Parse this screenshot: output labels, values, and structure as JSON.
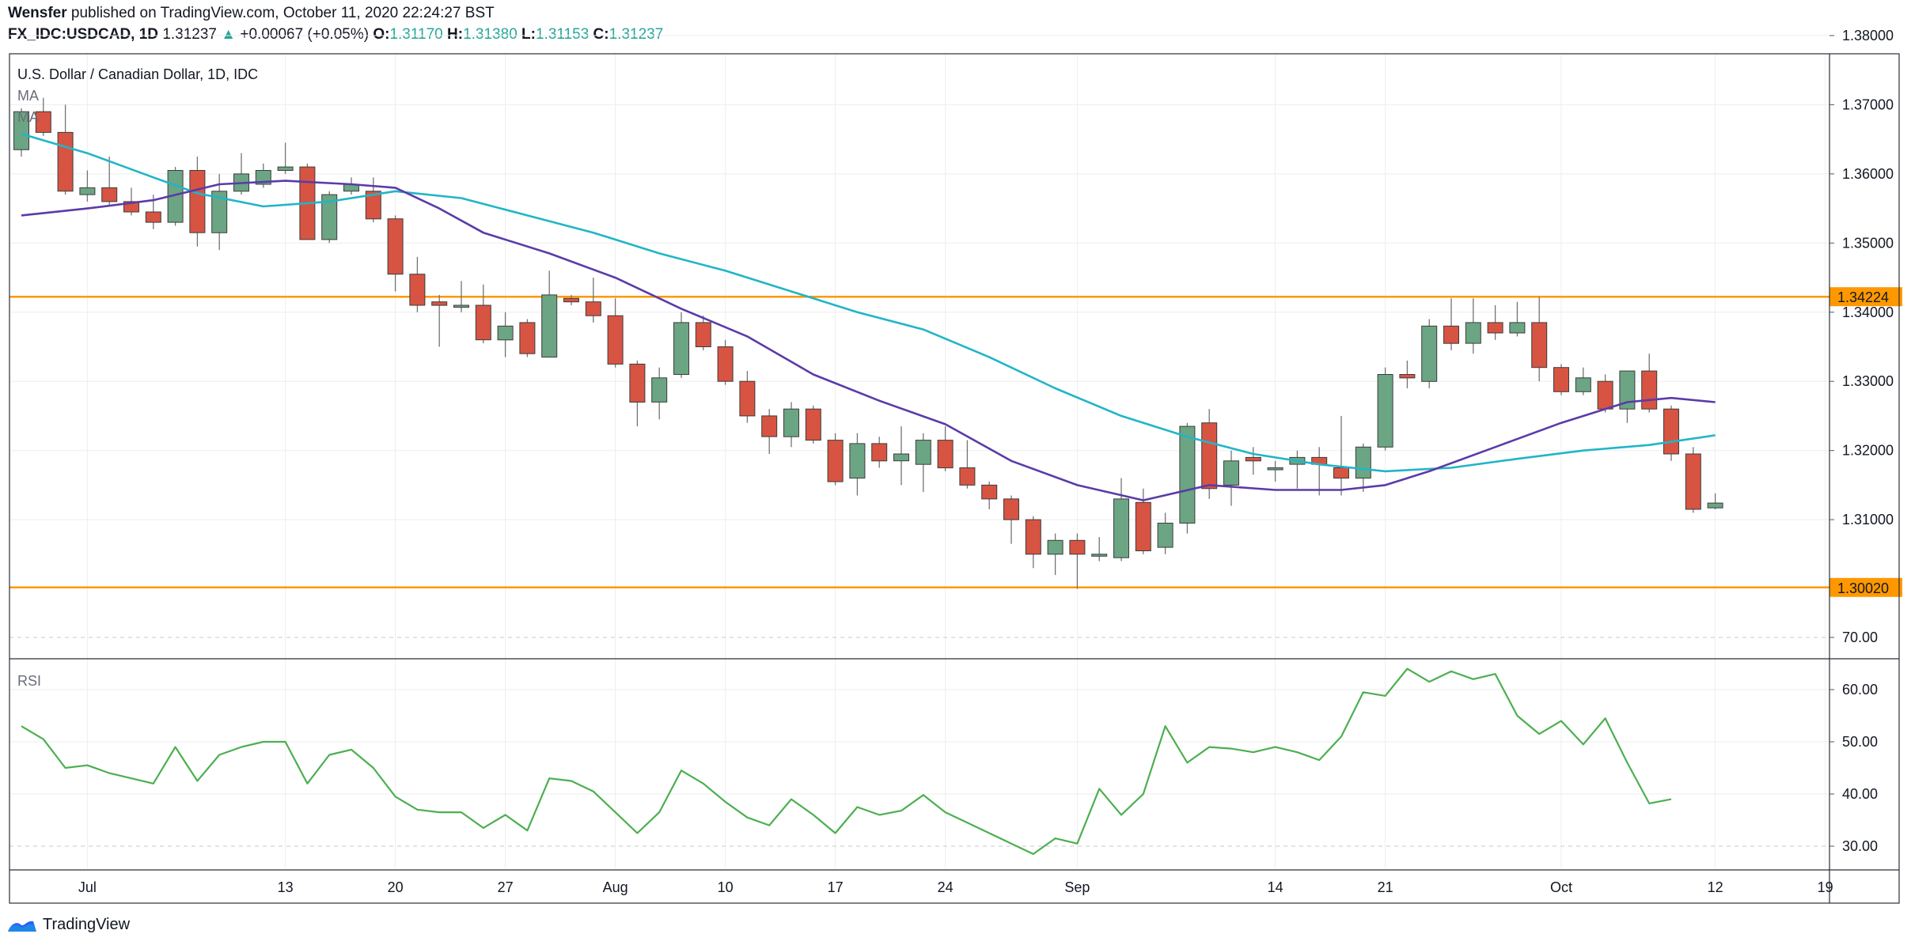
{
  "header": {
    "author": "Wensfer",
    "published_text": "published on TradingView.com, October 11, 2020 22:24:27 BST",
    "symbol": "FX_IDC:USDCAD, 1D",
    "last": "1.31237",
    "change_arrow": "▲",
    "change": "+0.00067 (+0.05%)",
    "o_label": "O:",
    "o_value": "1.31170",
    "h_label": "H:",
    "h_value": "1.31380",
    "l_label": "L:",
    "l_value": "1.31153",
    "c_label": "C:",
    "c_value": "1.31237"
  },
  "legend": {
    "title": "U.S. Dollar / Canadian Dollar, 1D, IDC",
    "ma1": "MA",
    "ma2": "MA",
    "rsi": "RSI"
  },
  "footer": {
    "brand": "TradingView"
  },
  "colors": {
    "up": "#6ba583",
    "down": "#d75442",
    "wick": "#737375",
    "ma_fast": "#21b5c8",
    "ma_slow": "#5b3ba8",
    "rsi": "#4caf50",
    "hline": "#ff9800",
    "grid": "#eeeeee"
  },
  "chart_data": [
    {
      "type": "candlestick",
      "title": "U.S. Dollar / Canadian Dollar, 1D, IDC",
      "ylim": [
        1.29,
        1.38
      ],
      "y_ticks": [
        "1.38000",
        "1.37000",
        "1.36000",
        "1.35000",
        "1.34000",
        "1.33000",
        "1.32000",
        "1.31000"
      ],
      "x_ticks": [
        {
          "label": "Jul",
          "index": 3
        },
        {
          "label": "13",
          "index": 12
        },
        {
          "label": "20",
          "index": 17
        },
        {
          "label": "27",
          "index": 22
        },
        {
          "label": "Aug",
          "index": 27
        },
        {
          "label": "10",
          "index": 32
        },
        {
          "label": "17",
          "index": 37
        },
        {
          "label": "24",
          "index": 42
        },
        {
          "label": "Sep",
          "index": 48
        },
        {
          "label": "14",
          "index": 57
        },
        {
          "label": "21",
          "index": 62
        },
        {
          "label": "Oct",
          "index": 70
        },
        {
          "label": "12",
          "index": 77
        },
        {
          "label": "19",
          "index": 82
        }
      ],
      "horizontal_lines": [
        {
          "value": 1.34224,
          "label": "1.34224"
        },
        {
          "value": 1.3002,
          "label": "1.30020"
        }
      ],
      "candles": [
        {
          "o": 1.3635,
          "h": 1.3695,
          "l": 1.3625,
          "c": 1.369
        },
        {
          "o": 1.369,
          "h": 1.371,
          "l": 1.3655,
          "c": 1.366
        },
        {
          "o": 1.366,
          "h": 1.37,
          "l": 1.357,
          "c": 1.3575
        },
        {
          "o": 1.357,
          "h": 1.3605,
          "l": 1.356,
          "c": 1.358
        },
        {
          "o": 1.358,
          "h": 1.3625,
          "l": 1.3555,
          "c": 1.356
        },
        {
          "o": 1.356,
          "h": 1.358,
          "l": 1.354,
          "c": 1.3545
        },
        {
          "o": 1.3545,
          "h": 1.357,
          "l": 1.352,
          "c": 1.353
        },
        {
          "o": 1.353,
          "h": 1.361,
          "l": 1.3525,
          "c": 1.3605
        },
        {
          "o": 1.3605,
          "h": 1.3625,
          "l": 1.3495,
          "c": 1.3515
        },
        {
          "o": 1.3515,
          "h": 1.36,
          "l": 1.349,
          "c": 1.3575
        },
        {
          "o": 1.3575,
          "h": 1.363,
          "l": 1.357,
          "c": 1.36
        },
        {
          "o": 1.3585,
          "h": 1.3615,
          "l": 1.358,
          "c": 1.3605
        },
        {
          "o": 1.3605,
          "h": 1.3645,
          "l": 1.36,
          "c": 1.361
        },
        {
          "o": 1.361,
          "h": 1.3615,
          "l": 1.3505,
          "c": 1.3505
        },
        {
          "o": 1.3505,
          "h": 1.3575,
          "l": 1.35,
          "c": 1.357
        },
        {
          "o": 1.3575,
          "h": 1.3595,
          "l": 1.357,
          "c": 1.3585
        },
        {
          "o": 1.3575,
          "h": 1.3595,
          "l": 1.353,
          "c": 1.3535
        },
        {
          "o": 1.3535,
          "h": 1.354,
          "l": 1.343,
          "c": 1.3455
        },
        {
          "o": 1.3455,
          "h": 1.348,
          "l": 1.34,
          "c": 1.341
        },
        {
          "o": 1.3415,
          "h": 1.3425,
          "l": 1.335,
          "c": 1.341
        },
        {
          "o": 1.341,
          "h": 1.3445,
          "l": 1.34,
          "c": 1.341
        },
        {
          "o": 1.341,
          "h": 1.344,
          "l": 1.3355,
          "c": 1.336
        },
        {
          "o": 1.336,
          "h": 1.34,
          "l": 1.3335,
          "c": 1.338
        },
        {
          "o": 1.3385,
          "h": 1.339,
          "l": 1.3335,
          "c": 1.334
        },
        {
          "o": 1.3335,
          "h": 1.346,
          "l": 1.3335,
          "c": 1.3425
        },
        {
          "o": 1.342,
          "h": 1.3425,
          "l": 1.341,
          "c": 1.3415
        },
        {
          "o": 1.3415,
          "h": 1.345,
          "l": 1.3385,
          "c": 1.3395
        },
        {
          "o": 1.3395,
          "h": 1.342,
          "l": 1.332,
          "c": 1.3325
        },
        {
          "o": 1.3325,
          "h": 1.333,
          "l": 1.3235,
          "c": 1.327
        },
        {
          "o": 1.327,
          "h": 1.332,
          "l": 1.3245,
          "c": 1.3305
        },
        {
          "o": 1.331,
          "h": 1.34,
          "l": 1.3305,
          "c": 1.3385
        },
        {
          "o": 1.3385,
          "h": 1.3395,
          "l": 1.3345,
          "c": 1.335
        },
        {
          "o": 1.335,
          "h": 1.336,
          "l": 1.3295,
          "c": 1.33
        },
        {
          "o": 1.33,
          "h": 1.3315,
          "l": 1.324,
          "c": 1.325
        },
        {
          "o": 1.325,
          "h": 1.326,
          "l": 1.3195,
          "c": 1.322
        },
        {
          "o": 1.322,
          "h": 1.327,
          "l": 1.3205,
          "c": 1.326
        },
        {
          "o": 1.326,
          "h": 1.3265,
          "l": 1.321,
          "c": 1.3215
        },
        {
          "o": 1.3215,
          "h": 1.3225,
          "l": 1.315,
          "c": 1.3155
        },
        {
          "o": 1.316,
          "h": 1.3225,
          "l": 1.3135,
          "c": 1.321
        },
        {
          "o": 1.321,
          "h": 1.322,
          "l": 1.3175,
          "c": 1.3185
        },
        {
          "o": 1.3185,
          "h": 1.3235,
          "l": 1.315,
          "c": 1.3195
        },
        {
          "o": 1.318,
          "h": 1.3225,
          "l": 1.314,
          "c": 1.3215
        },
        {
          "o": 1.3215,
          "h": 1.3235,
          "l": 1.317,
          "c": 1.3175
        },
        {
          "o": 1.3175,
          "h": 1.3215,
          "l": 1.3145,
          "c": 1.315
        },
        {
          "o": 1.315,
          "h": 1.3155,
          "l": 1.3115,
          "c": 1.313
        },
        {
          "o": 1.313,
          "h": 1.3135,
          "l": 1.3065,
          "c": 1.31
        },
        {
          "o": 1.31,
          "h": 1.3105,
          "l": 1.303,
          "c": 1.305
        },
        {
          "o": 1.305,
          "h": 1.308,
          "l": 1.302,
          "c": 1.307
        },
        {
          "o": 1.307,
          "h": 1.308,
          "l": 1.3,
          "c": 1.305
        },
        {
          "o": 1.305,
          "h": 1.3075,
          "l": 1.304,
          "c": 1.305
        },
        {
          "o": 1.3045,
          "h": 1.316,
          "l": 1.304,
          "c": 1.313
        },
        {
          "o": 1.3125,
          "h": 1.3145,
          "l": 1.305,
          "c": 1.3055
        },
        {
          "o": 1.306,
          "h": 1.311,
          "l": 1.305,
          "c": 1.3095
        },
        {
          "o": 1.3095,
          "h": 1.324,
          "l": 1.308,
          "c": 1.3235
        },
        {
          "o": 1.324,
          "h": 1.326,
          "l": 1.313,
          "c": 1.3145
        },
        {
          "o": 1.315,
          "h": 1.32,
          "l": 1.312,
          "c": 1.3185
        },
        {
          "o": 1.319,
          "h": 1.3205,
          "l": 1.3165,
          "c": 1.3185
        },
        {
          "o": 1.3175,
          "h": 1.3185,
          "l": 1.3155,
          "c": 1.3175
        },
        {
          "o": 1.318,
          "h": 1.32,
          "l": 1.3145,
          "c": 1.319
        },
        {
          "o": 1.319,
          "h": 1.3205,
          "l": 1.3135,
          "c": 1.318
        },
        {
          "o": 1.3175,
          "h": 1.325,
          "l": 1.3135,
          "c": 1.316
        },
        {
          "o": 1.316,
          "h": 1.321,
          "l": 1.314,
          "c": 1.3205
        },
        {
          "o": 1.3205,
          "h": 1.332,
          "l": 1.32,
          "c": 1.331
        },
        {
          "o": 1.331,
          "h": 1.333,
          "l": 1.329,
          "c": 1.3305
        },
        {
          "o": 1.33,
          "h": 1.339,
          "l": 1.329,
          "c": 1.338
        },
        {
          "o": 1.338,
          "h": 1.342,
          "l": 1.3345,
          "c": 1.3355
        },
        {
          "o": 1.3355,
          "h": 1.342,
          "l": 1.334,
          "c": 1.3385
        },
        {
          "o": 1.3385,
          "h": 1.341,
          "l": 1.336,
          "c": 1.337
        },
        {
          "o": 1.337,
          "h": 1.3415,
          "l": 1.3365,
          "c": 1.3385
        },
        {
          "o": 1.3385,
          "h": 1.3422,
          "l": 1.33,
          "c": 1.332
        },
        {
          "o": 1.332,
          "h": 1.3325,
          "l": 1.328,
          "c": 1.3285
        },
        {
          "o": 1.3285,
          "h": 1.332,
          "l": 1.328,
          "c": 1.3305
        },
        {
          "o": 1.33,
          "h": 1.331,
          "l": 1.3255,
          "c": 1.326
        },
        {
          "o": 1.326,
          "h": 1.3315,
          "l": 1.324,
          "c": 1.3315
        },
        {
          "o": 1.3315,
          "h": 1.334,
          "l": 1.3255,
          "c": 1.326
        },
        {
          "o": 1.326,
          "h": 1.3265,
          "l": 1.3185,
          "c": 1.3195
        },
        {
          "o": 1.3195,
          "h": 1.3205,
          "l": 1.311,
          "c": 1.3115
        },
        {
          "o": 1.3117,
          "h": 1.3138,
          "l": 1.3115,
          "c": 1.3124
        }
      ],
      "series": [
        {
          "name": "MA",
          "values": [
            {
              "i": 0,
              "v": 1.3658
            },
            {
              "i": 3,
              "v": 1.363
            },
            {
              "i": 6,
              "v": 1.3595
            },
            {
              "i": 8,
              "v": 1.3572
            },
            {
              "i": 11,
              "v": 1.3553
            },
            {
              "i": 14,
              "v": 1.356
            },
            {
              "i": 17,
              "v": 1.3575
            },
            {
              "i": 20,
              "v": 1.3565
            },
            {
              "i": 23,
              "v": 1.354
            },
            {
              "i": 26,
              "v": 1.3515
            },
            {
              "i": 29,
              "v": 1.3485
            },
            {
              "i": 32,
              "v": 1.346
            },
            {
              "i": 35,
              "v": 1.343
            },
            {
              "i": 38,
              "v": 1.34
            },
            {
              "i": 41,
              "v": 1.3375
            },
            {
              "i": 44,
              "v": 1.3335
            },
            {
              "i": 47,
              "v": 1.329
            },
            {
              "i": 50,
              "v": 1.325
            },
            {
              "i": 53,
              "v": 1.322
            },
            {
              "i": 56,
              "v": 1.3195
            },
            {
              "i": 59,
              "v": 1.318
            },
            {
              "i": 62,
              "v": 1.317
            },
            {
              "i": 65,
              "v": 1.3175
            },
            {
              "i": 68,
              "v": 1.3188
            },
            {
              "i": 71,
              "v": 1.32
            },
            {
              "i": 74,
              "v": 1.3208
            },
            {
              "i": 77,
              "v": 1.3222
            }
          ]
        },
        {
          "name": "MA",
          "values": [
            {
              "i": 0,
              "v": 1.354
            },
            {
              "i": 3,
              "v": 1.355
            },
            {
              "i": 6,
              "v": 1.3562
            },
            {
              "i": 9,
              "v": 1.3585
            },
            {
              "i": 12,
              "v": 1.359
            },
            {
              "i": 15,
              "v": 1.3585
            },
            {
              "i": 17,
              "v": 1.358
            },
            {
              "i": 19,
              "v": 1.355
            },
            {
              "i": 21,
              "v": 1.3515
            },
            {
              "i": 24,
              "v": 1.3485
            },
            {
              "i": 27,
              "v": 1.345
            },
            {
              "i": 30,
              "v": 1.3405
            },
            {
              "i": 33,
              "v": 1.3365
            },
            {
              "i": 36,
              "v": 1.331
            },
            {
              "i": 39,
              "v": 1.3272
            },
            {
              "i": 42,
              "v": 1.3238
            },
            {
              "i": 45,
              "v": 1.3185
            },
            {
              "i": 48,
              "v": 1.315
            },
            {
              "i": 51,
              "v": 1.3128
            },
            {
              "i": 54,
              "v": 1.315
            },
            {
              "i": 57,
              "v": 1.3143
            },
            {
              "i": 60,
              "v": 1.3143
            },
            {
              "i": 62,
              "v": 1.315
            },
            {
              "i": 64,
              "v": 1.317
            },
            {
              "i": 67,
              "v": 1.3205
            },
            {
              "i": 70,
              "v": 1.324
            },
            {
              "i": 73,
              "v": 1.327
            },
            {
              "i": 75,
              "v": 1.3276
            },
            {
              "i": 77,
              "v": 1.327
            }
          ]
        }
      ]
    },
    {
      "type": "line",
      "title": "RSI",
      "ylim": [
        25,
        75
      ],
      "y_ticks": [
        "70.00",
        "60.00",
        "50.00",
        "40.00",
        "30.00"
      ],
      "dashed_levels": [
        70,
        30
      ],
      "series": [
        {
          "name": "RSI",
          "values": [
            53,
            50.5,
            45,
            45.5,
            44,
            43,
            42,
            49,
            42.5,
            47.5,
            49,
            50,
            50,
            42,
            47.5,
            48.5,
            45,
            39.5,
            37,
            36.5,
            36.5,
            33.5,
            36,
            33,
            43,
            42.5,
            40.5,
            36.5,
            32.5,
            36.5,
            44.5,
            42,
            38.5,
            35.5,
            34,
            39,
            36,
            32.5,
            37.5,
            36,
            36.8,
            39.8,
            36.5,
            34.5,
            32.5,
            30.5,
            28.5,
            31.5,
            30.5,
            41,
            36,
            40,
            53,
            46,
            49,
            48.7,
            48,
            49,
            48,
            46.5,
            51,
            59.5,
            58.8,
            64,
            61.5,
            63.5,
            62,
            63,
            55,
            51.5,
            54,
            49.5,
            54.5,
            46,
            38.2,
            39
          ]
        }
      ]
    }
  ]
}
